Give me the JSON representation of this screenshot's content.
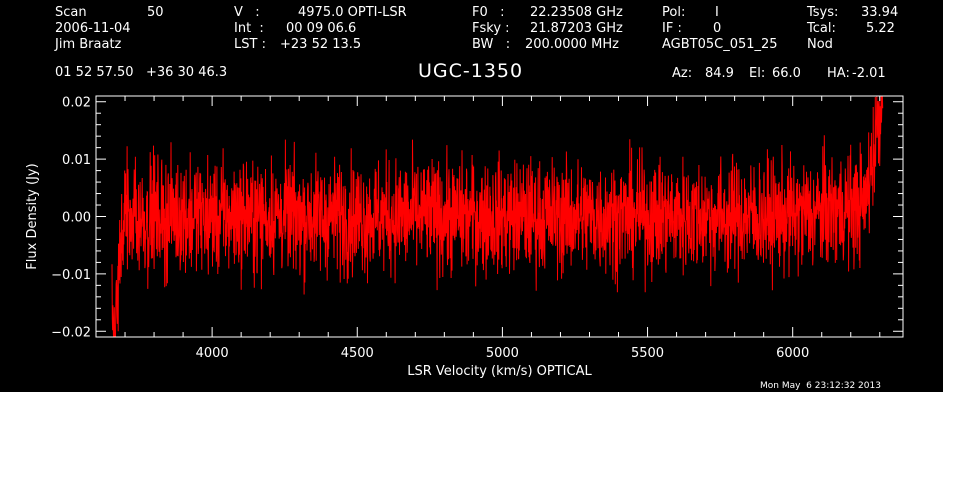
{
  "header": {
    "scan_label": "Scan",
    "scan_value": "50",
    "date": "2006-11-04",
    "observer": "Jim Braatz",
    "v_label": "V   :",
    "v_value": "4975.0 OPTI-LSR",
    "int_label": "Int  :",
    "int_value": "00 09 06.6",
    "lst_label": "LST :",
    "lst_value": "+23 52 13.5",
    "f0_label": "F0   :",
    "f0_value": "22.23508 GHz",
    "fsky_label": "Fsky :",
    "fsky_value": "21.87203 GHz",
    "bw_label": "BW   :",
    "bw_value": "200.0000 MHz",
    "pol_label": "Pol:",
    "pol_value": "I",
    "if_label": "IF :",
    "if_value": "0",
    "project": "AGBT05C_051_25",
    "tsys_label": "Tsys:",
    "tsys_value": "33.94",
    "tcal_label": "Tcal:",
    "tcal_value": "5.22",
    "proc": "Nod",
    "coords": "01 52 57.50   +36 30 46.3",
    "source": "UGC-1350",
    "az_label": "Az:",
    "az_value": "84.9",
    "el_label": "El:",
    "el_value": "66.0",
    "ha_label": "HA:",
    "ha_value": "-2.01"
  },
  "timestamp": "Mon May  6 23:12:32 2013",
  "chart_data": {
    "type": "line",
    "xlabel": "LSR Velocity (km/s) OPTICAL",
    "ylabel": "Flux Density (Jy)",
    "xlim": [
      3600,
      6380
    ],
    "ylim": [
      -0.021,
      0.021
    ],
    "xticks": [
      4000,
      4500,
      5000,
      5500,
      6000
    ],
    "xtick_labels": [
      "4000",
      "4500",
      "5000",
      "5500",
      "6000"
    ],
    "yticks": [
      -0.02,
      -0.01,
      0.0,
      0.01,
      0.02
    ],
    "ytick_labels": [
      "−0.02",
      "−0.01",
      "0.00",
      "0.01",
      "0.02"
    ],
    "series": [
      {
        "color": "#ff0000",
        "noise_rms": 0.005,
        "x_start": 3655,
        "x_end": 6310,
        "points": [
          {
            "x": 3655,
            "y": -0.014
          },
          {
            "x": 3665,
            "y": -0.02
          },
          {
            "x": 3680,
            "y": -0.01
          },
          {
            "x": 3700,
            "y": 0.0
          },
          {
            "x": 4000,
            "y": 0.0
          },
          {
            "x": 5000,
            "y": 0.0
          },
          {
            "x": 6000,
            "y": 0.0
          },
          {
            "x": 6250,
            "y": 0.002
          },
          {
            "x": 6300,
            "y": 0.019
          }
        ]
      }
    ]
  }
}
